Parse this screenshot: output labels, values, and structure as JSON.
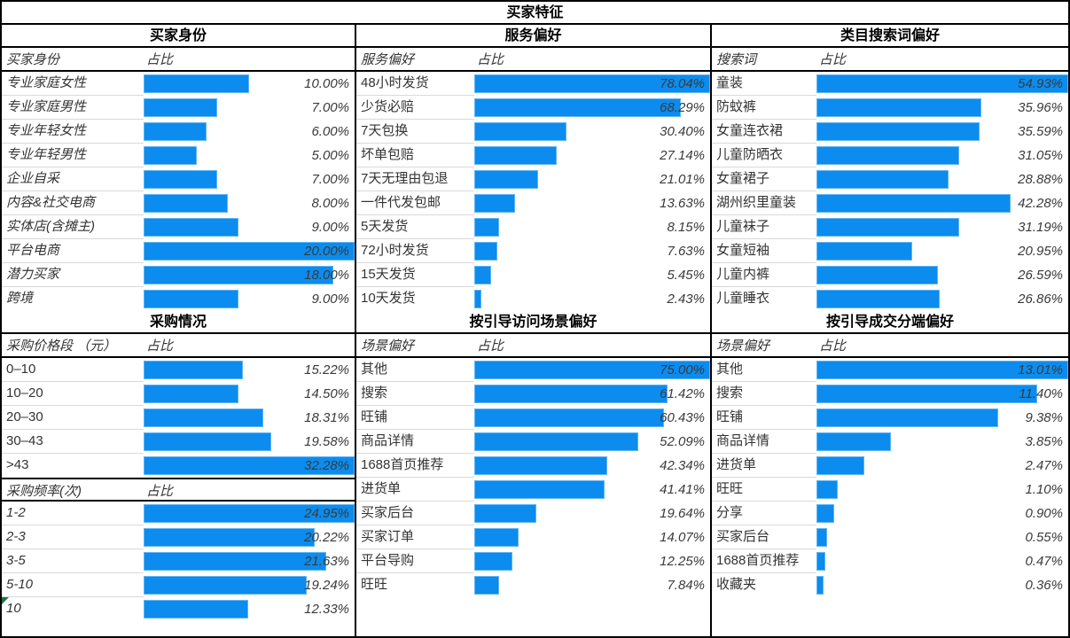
{
  "title": "买家特征",
  "bar_color": "#0b8cee",
  "chart_data": [
    {
      "id": "buyer-identity",
      "type": "bar",
      "panel_title": "买家身份",
      "col_headers": [
        "买家身份",
        "占比"
      ],
      "scale_max": 20.0,
      "xlim": [
        0,
        20.0
      ],
      "rows": [
        {
          "label": "专业家庭女性",
          "value": 10.0,
          "pct": "10.00%"
        },
        {
          "label": "专业家庭男性",
          "value": 7.0,
          "pct": "7.00%"
        },
        {
          "label": "专业年轻女性",
          "value": 6.0,
          "pct": "6.00%"
        },
        {
          "label": "专业年轻男性",
          "value": 5.0,
          "pct": "5.00%"
        },
        {
          "label": "企业自采",
          "value": 7.0,
          "pct": "7.00%"
        },
        {
          "label": "内容&社交电商",
          "value": 8.0,
          "pct": "8.00%"
        },
        {
          "label": "实体店(含摊主)",
          "value": 9.0,
          "pct": "9.00%"
        },
        {
          "label": "平台电商",
          "value": 20.0,
          "pct": "20.00%"
        },
        {
          "label": "潜力买家",
          "value": 18.0,
          "pct": "18.00%"
        },
        {
          "label": "跨境",
          "value": 9.0,
          "pct": "9.00%"
        }
      ]
    },
    {
      "id": "service-preference",
      "type": "bar",
      "panel_title": "服务偏好",
      "col_headers": [
        "服务偏好",
        "占比"
      ],
      "scale_max": 78.04,
      "xlim": [
        0,
        78.04
      ],
      "rows": [
        {
          "label": "48小时发货",
          "value": 78.04,
          "pct": "78.04%"
        },
        {
          "label": "少货必赔",
          "value": 68.29,
          "pct": "68.29%"
        },
        {
          "label": "7天包换",
          "value": 30.4,
          "pct": "30.40%"
        },
        {
          "label": "坏单包赔",
          "value": 27.14,
          "pct": "27.14%"
        },
        {
          "label": "7天无理由包退",
          "value": 21.01,
          "pct": "21.01%"
        },
        {
          "label": "一件代发包邮",
          "value": 13.63,
          "pct": "13.63%"
        },
        {
          "label": "5天发货",
          "value": 8.15,
          "pct": "8.15%"
        },
        {
          "label": "72小时发货",
          "value": 7.63,
          "pct": "7.63%"
        },
        {
          "label": "15天发货",
          "value": 5.45,
          "pct": "5.45%"
        },
        {
          "label": "10天发货",
          "value": 2.43,
          "pct": "2.43%"
        }
      ]
    },
    {
      "id": "category-search-terms",
      "type": "bar",
      "panel_title": "类目搜索词偏好",
      "col_headers": [
        "搜索词",
        "占比"
      ],
      "scale_max": 54.93,
      "xlim": [
        0,
        54.93
      ],
      "rows": [
        {
          "label": "童装",
          "value": 54.93,
          "pct": "54.93%"
        },
        {
          "label": "防蚊裤",
          "value": 35.96,
          "pct": "35.96%"
        },
        {
          "label": "女童连衣裙",
          "value": 35.59,
          "pct": "35.59%"
        },
        {
          "label": "儿童防晒衣",
          "value": 31.05,
          "pct": "31.05%"
        },
        {
          "label": "女童裙子",
          "value": 28.88,
          "pct": "28.88%"
        },
        {
          "label": "湖州织里童装",
          "value": 42.28,
          "pct": "42.28%"
        },
        {
          "label": "儿童袜子",
          "value": 31.19,
          "pct": "31.19%"
        },
        {
          "label": "女童短袖",
          "value": 20.95,
          "pct": "20.95%"
        },
        {
          "label": "儿童内裤",
          "value": 26.59,
          "pct": "26.59%"
        },
        {
          "label": "儿童睡衣",
          "value": 26.86,
          "pct": "26.86%"
        }
      ]
    },
    {
      "id": "purchase-price-range",
      "type": "bar",
      "panel_title": "采购情况",
      "col_headers": [
        "采购价格段 （元）",
        "占比"
      ],
      "scale_max": 32.28,
      "xlim": [
        0,
        32.28
      ],
      "rows": [
        {
          "label": "0–10",
          "value": 15.22,
          "pct": "15.22%"
        },
        {
          "label": "10–20",
          "value": 14.5,
          "pct": "14.50%"
        },
        {
          "label": "20–30",
          "value": 18.31,
          "pct": "18.31%"
        },
        {
          "label": "30–43",
          "value": 19.58,
          "pct": "19.58%"
        },
        {
          "label": ">43",
          "value": 32.28,
          "pct": "32.28%"
        }
      ]
    },
    {
      "id": "purchase-frequency",
      "type": "bar",
      "col_headers": [
        "采购频率(次)",
        "占比"
      ],
      "scale_max": 24.95,
      "xlim": [
        0,
        24.95
      ],
      "rows": [
        {
          "label": "1-2",
          "value": 24.95,
          "pct": "24.95%"
        },
        {
          "label": "2-3",
          "value": 20.22,
          "pct": "20.22%"
        },
        {
          "label": "3-5",
          "value": 21.63,
          "pct": "21.63%"
        },
        {
          "label": "5-10",
          "value": 19.24,
          "pct": "19.24%"
        },
        {
          "label": "10",
          "value": 12.33,
          "pct": "12.33%",
          "error_indicator": true
        }
      ]
    },
    {
      "id": "guided-visit-scene",
      "type": "bar",
      "panel_title": "按引导访问场景偏好",
      "col_headers": [
        "场景偏好",
        "占比"
      ],
      "scale_max": 75.0,
      "xlim": [
        0,
        75.0
      ],
      "rows": [
        {
          "label": "其他",
          "value": 75.0,
          "pct": "75.00%"
        },
        {
          "label": "搜索",
          "value": 61.42,
          "pct": "61.42%"
        },
        {
          "label": "旺铺",
          "value": 60.43,
          "pct": "60.43%"
        },
        {
          "label": "商品详情",
          "value": 52.09,
          "pct": "52.09%"
        },
        {
          "label": "1688首页推荐",
          "value": 42.34,
          "pct": "42.34%"
        },
        {
          "label": "进货单",
          "value": 41.41,
          "pct": "41.41%"
        },
        {
          "label": "买家后台",
          "value": 19.64,
          "pct": "19.64%"
        },
        {
          "label": "买家订单",
          "value": 14.07,
          "pct": "14.07%"
        },
        {
          "label": "平台导购",
          "value": 12.25,
          "pct": "12.25%"
        },
        {
          "label": "旺旺",
          "value": 7.84,
          "pct": "7.84%"
        }
      ]
    },
    {
      "id": "guided-deal-terminal",
      "type": "bar",
      "panel_title": "按引导成交分端偏好",
      "col_headers": [
        "场景偏好",
        "占比"
      ],
      "scale_max": 13.01,
      "xlim": [
        0,
        13.01
      ],
      "rows": [
        {
          "label": "其他",
          "value": 13.01,
          "pct": "13.01%"
        },
        {
          "label": "搜索",
          "value": 11.4,
          "pct": "11.40%"
        },
        {
          "label": "旺铺",
          "value": 9.38,
          "pct": "9.38%"
        },
        {
          "label": "商品详情",
          "value": 3.85,
          "pct": "3.85%"
        },
        {
          "label": "进货单",
          "value": 2.47,
          "pct": "2.47%"
        },
        {
          "label": "旺旺",
          "value": 1.1,
          "pct": "1.10%"
        },
        {
          "label": "分享",
          "value": 0.9,
          "pct": "0.90%"
        },
        {
          "label": "买家后台",
          "value": 0.55,
          "pct": "0.55%"
        },
        {
          "label": "1688首页推荐",
          "value": 0.47,
          "pct": "0.47%"
        },
        {
          "label": "收藏夹",
          "value": 0.36,
          "pct": "0.36%"
        }
      ]
    }
  ]
}
